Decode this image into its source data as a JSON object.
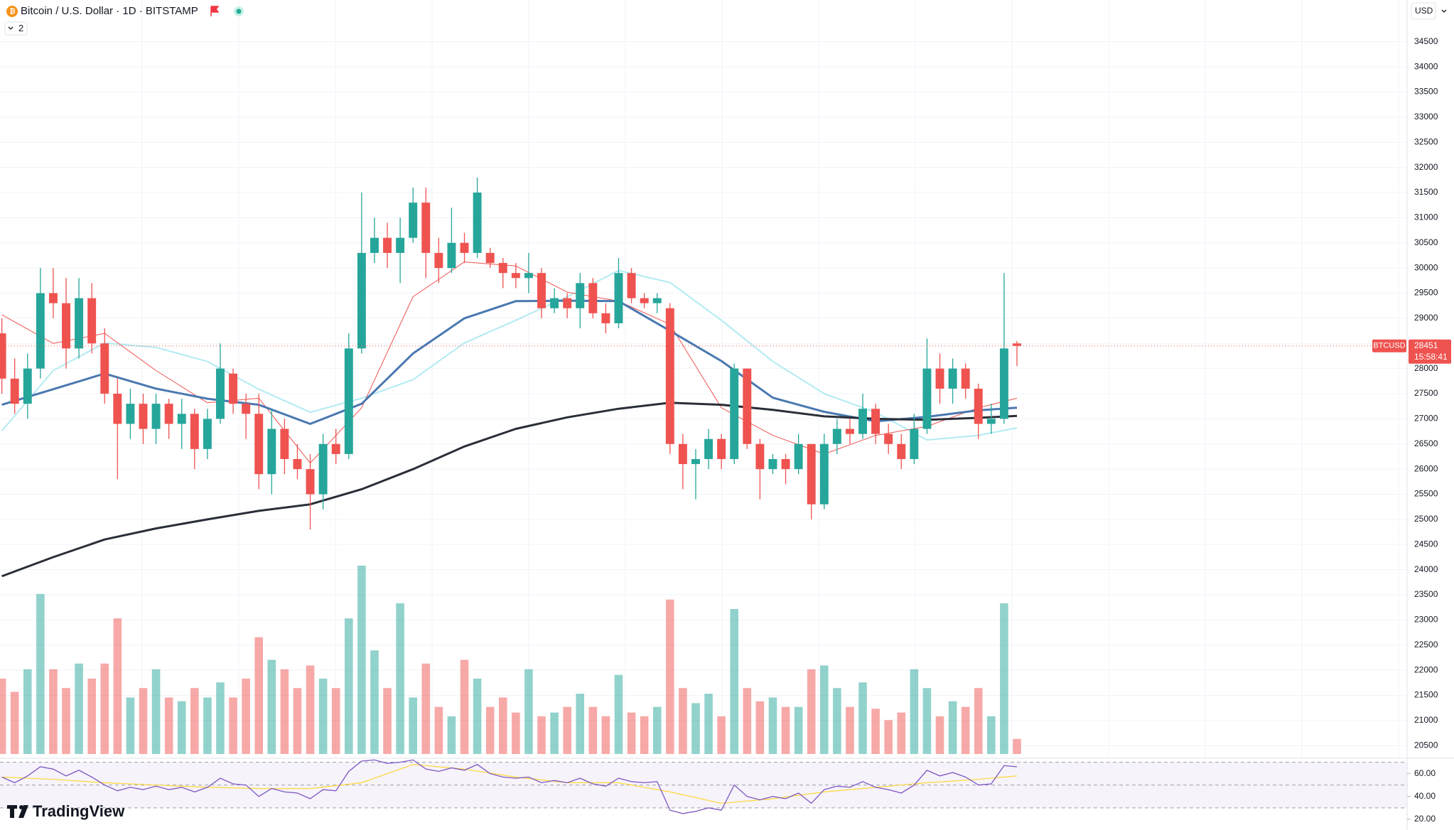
{
  "chart_data": {
    "type": "candlestick",
    "title": "Bitcoin / U.S. Dollar · 1D · BITSTAMP",
    "indicator_count": 2,
    "currency": "USD",
    "symbol": "BTCUSD",
    "last_price": 28451,
    "countdown": "15:58:41",
    "brand": "TradingView",
    "colors": {
      "up": "#26a69a",
      "down": "#ef5350"
    },
    "open": [
      28700,
      27800,
      27300,
      28000,
      29500,
      29300,
      28400,
      29400,
      28500,
      27500,
      26900,
      27300,
      26800,
      27300,
      26900,
      27100,
      26400,
      27000,
      27900,
      27300,
      27100,
      25900,
      26800,
      26200,
      26000,
      25500,
      26500,
      26300,
      28400,
      30300,
      30600,
      30300,
      30600,
      31300,
      30300,
      30000,
      30500,
      30300,
      30300,
      30100,
      29900,
      29800,
      29900,
      29200,
      29400,
      29200,
      29700,
      29100,
      28900,
      29900,
      29400,
      29300,
      29200,
      26500,
      26100,
      26200,
      26600,
      26200,
      28000,
      26500,
      26000,
      26200,
      26000,
      26500,
      25300,
      26500,
      26800,
      26700,
      27200,
      26700,
      26500,
      26200,
      26800,
      28000,
      27600,
      28000,
      27600,
      26900,
      27000,
      28500
    ],
    "high": [
      29000,
      28200,
      28300,
      30000,
      30000,
      29800,
      29800,
      29700,
      28800,
      27800,
      27600,
      27500,
      27500,
      27400,
      27400,
      27200,
      27200,
      28500,
      28000,
      27500,
      27500,
      27200,
      27000,
      26500,
      26300,
      26700,
      26800,
      28700,
      31500,
      31000,
      30900,
      31000,
      31600,
      31600,
      30600,
      31200,
      30700,
      31800,
      30400,
      30200,
      30100,
      30300,
      30000,
      29600,
      29500,
      29900,
      29800,
      29300,
      30200,
      30000,
      29500,
      29500,
      29300,
      26700,
      26400,
      26800,
      26700,
      28100,
      28000,
      26600,
      26300,
      26300,
      26700,
      26500,
      26700,
      27000,
      27000,
      27500,
      27300,
      26900,
      26700,
      27100,
      28600,
      28300,
      28200,
      28100,
      27700,
      27300,
      29900,
      28550
    ],
    "low": [
      27500,
      27100,
      27000,
      27800,
      29000,
      28000,
      28200,
      28300,
      27300,
      25800,
      26600,
      26500,
      26500,
      26600,
      26400,
      26000,
      26200,
      26900,
      27100,
      26600,
      25600,
      25500,
      25900,
      25800,
      24800,
      25200,
      26100,
      26200,
      28300,
      30100,
      30000,
      29700,
      30500,
      29800,
      29700,
      29900,
      30100,
      30200,
      30000,
      29600,
      29600,
      29500,
      29000,
      29100,
      29000,
      28800,
      29000,
      28700,
      28800,
      29300,
      29200,
      29100,
      26300,
      25600,
      25400,
      26000,
      26000,
      26100,
      26400,
      25400,
      25900,
      25700,
      25900,
      25000,
      25200,
      26300,
      26500,
      26600,
      26500,
      26300,
      26000,
      26100,
      26700,
      27300,
      27300,
      27400,
      26600,
      26700,
      26900,
      28050
    ],
    "close": [
      27800,
      27300,
      28000,
      29500,
      29300,
      28400,
      29400,
      28500,
      27500,
      26900,
      27300,
      26800,
      27300,
      26900,
      27100,
      26400,
      27000,
      28000,
      27300,
      27100,
      25900,
      26800,
      26200,
      26000,
      25500,
      26500,
      26300,
      28400,
      30300,
      30600,
      30300,
      30600,
      31300,
      30300,
      30000,
      30500,
      30300,
      31500,
      30100,
      29900,
      29800,
      29900,
      29200,
      29400,
      29200,
      29700,
      29100,
      28900,
      29900,
      29400,
      29300,
      29400,
      26500,
      26100,
      26200,
      26600,
      26200,
      28000,
      26500,
      26000,
      26200,
      26000,
      26500,
      25300,
      26500,
      26800,
      26700,
      27200,
      26700,
      26500,
      26200,
      26800,
      28000,
      27600,
      28000,
      27600,
      26900,
      27000,
      28400,
      28451
    ],
    "volume": [
      40,
      33,
      45,
      85,
      45,
      35,
      48,
      40,
      48,
      72,
      30,
      35,
      45,
      30,
      28,
      35,
      30,
      38,
      30,
      40,
      62,
      50,
      45,
      35,
      47,
      40,
      35,
      72,
      100,
      55,
      35,
      80,
      30,
      48,
      25,
      20,
      50,
      40,
      25,
      30,
      22,
      45,
      20,
      22,
      25,
      32,
      25,
      20,
      42,
      22,
      20,
      25,
      82,
      35,
      27,
      32,
      20,
      77,
      35,
      28,
      30,
      25,
      25,
      45,
      47,
      35,
      25,
      38,
      24,
      18,
      22,
      45,
      35,
      20,
      28,
      25,
      35,
      20,
      80,
      8
    ],
    "ylim": [
      20250,
      35330
    ],
    "yticks": [
      20500,
      21000,
      21500,
      22000,
      22500,
      23000,
      23500,
      24000,
      24500,
      25000,
      25500,
      26000,
      26500,
      27000,
      27500,
      28000,
      28500,
      29000,
      29500,
      30000,
      30500,
      31000,
      31500,
      32000,
      32500,
      33000,
      33500,
      34000,
      34500
    ],
    "grid": true,
    "moving_averages": [
      {
        "color": "#b2ebf2",
        "width": 2,
        "x": [
          0,
          4,
          8,
          12,
          16,
          20,
          24,
          28,
          32,
          36,
          40,
          44,
          48,
          52,
          56,
          60,
          64,
          68,
          72,
          76,
          79
        ],
        "values": [
          26760,
          27960,
          28510,
          28420,
          28140,
          27590,
          27130,
          27410,
          27780,
          28510,
          28960,
          29430,
          29950,
          29710,
          28960,
          28140,
          27500,
          27130,
          26580,
          26670,
          26820
        ]
      },
      {
        "color": "#ef5350",
        "width": 1,
        "x": [
          0,
          4,
          8,
          12,
          16,
          20,
          24,
          28,
          32,
          36,
          40,
          44,
          48,
          52,
          56,
          60,
          64,
          68,
          72,
          76,
          79
        ],
        "values": [
          29070,
          28500,
          28700,
          27960,
          27320,
          27410,
          26120,
          27220,
          29430,
          30120,
          30040,
          29520,
          29340,
          28880,
          27220,
          26670,
          26300,
          26670,
          26850,
          27220,
          27410
        ]
      },
      {
        "color": "#4a78b0",
        "width": 3,
        "x": [
          0,
          4,
          8,
          12,
          16,
          20,
          24,
          28,
          32,
          36,
          40,
          44,
          48,
          52,
          56,
          60,
          64,
          68,
          72,
          76,
          79
        ],
        "values": [
          27280,
          27590,
          27900,
          27600,
          27400,
          27280,
          26900,
          27300,
          28300,
          29000,
          29340,
          29350,
          29340,
          28750,
          28150,
          27420,
          27140,
          26950,
          27040,
          27170,
          27220
        ]
      },
      {
        "color": "#2a2e39",
        "width": 3,
        "x": [
          0,
          4,
          8,
          12,
          16,
          20,
          24,
          28,
          32,
          36,
          40,
          44,
          48,
          52,
          56,
          60,
          64,
          68,
          72,
          76,
          79
        ],
        "values": [
          23870,
          24250,
          24600,
          24820,
          25000,
          25170,
          25300,
          25600,
          26000,
          26450,
          26800,
          27030,
          27200,
          27320,
          27280,
          27180,
          27050,
          27000,
          26980,
          27020,
          27060
        ]
      }
    ],
    "rsi": {
      "color": "#7e57c2",
      "values": [
        57,
        52,
        58,
        66,
        64,
        58,
        63,
        57,
        50,
        45,
        48,
        46,
        49,
        46,
        48,
        44,
        48,
        56,
        51,
        50,
        40,
        47,
        44,
        43,
        38,
        46,
        45,
        62,
        71,
        72,
        69,
        70,
        72,
        64,
        62,
        65,
        63,
        68,
        60,
        57,
        56,
        57,
        52,
        54,
        52,
        56,
        51,
        49,
        56,
        53,
        52,
        53,
        28,
        25,
        27,
        30,
        28,
        50,
        40,
        37,
        40,
        38,
        43,
        34,
        46,
        49,
        48,
        53,
        48,
        46,
        43,
        50,
        63,
        58,
        61,
        57,
        50,
        51,
        67,
        66
      ],
      "ma": {
        "color": "#fdd835",
        "x": [
          0,
          4,
          8,
          12,
          16,
          20,
          24,
          28,
          32,
          36,
          40,
          44,
          48,
          52,
          56,
          60,
          64,
          68,
          72,
          76,
          79
        ],
        "values": [
          57,
          55,
          52,
          50,
          48,
          47,
          47,
          52,
          68,
          64,
          57,
          52,
          52,
          44,
          34,
          38,
          44,
          48,
          52,
          55,
          58
        ]
      },
      "ylim": [
        10.6,
        73.5
      ],
      "yticks": [
        {
          "value": 60,
          "label": "60.00"
        },
        {
          "value": 40,
          "label": "40.00"
        },
        {
          "value": 20,
          "label": "20.00"
        }
      ],
      "levels": [
        70,
        50,
        30
      ]
    }
  }
}
